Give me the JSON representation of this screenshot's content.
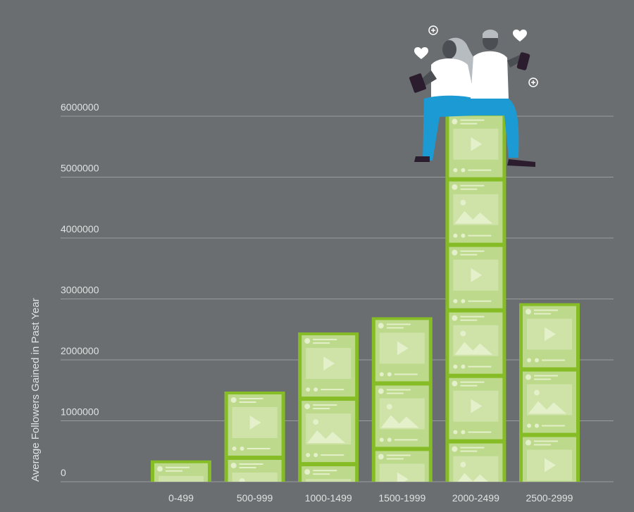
{
  "chart_data": {
    "type": "bar",
    "xlabel": "",
    "ylabel": "Average Followers Gained in Past Year",
    "categories": [
      "0-499",
      "500-999",
      "1000-1499",
      "1500-1999",
      "2000-2499",
      "2500-2999"
    ],
    "values": [
      350000,
      1480000,
      2450000,
      2700000,
      6050000,
      2930000
    ],
    "yticks": [
      0,
      1000000,
      2000000,
      3000000,
      4000000,
      5000000,
      6000000
    ],
    "ytick_labels": [
      "0",
      "1000000",
      "2000000",
      "3000000",
      "4000000",
      "5000000",
      "6000000"
    ],
    "ylim": [
      0,
      6050000
    ],
    "grid": true,
    "legend": "none"
  },
  "colors": {
    "background": "#6b6e70",
    "gridline": "#9a9c9e",
    "bar_fill": "#86bd26",
    "card_fill": "#bcd98c",
    "card_accent": "#e3f0c9",
    "axis_text": "#dfe1e2",
    "person_top": "#ffffff",
    "person_pants": "#1c9ad3",
    "person_skin": "#4b4e52"
  },
  "illustration": {
    "icons": [
      "heart-icon",
      "heart-icon",
      "plus-icon",
      "plus-icon",
      "phone-icon",
      "tablet-icon"
    ]
  }
}
